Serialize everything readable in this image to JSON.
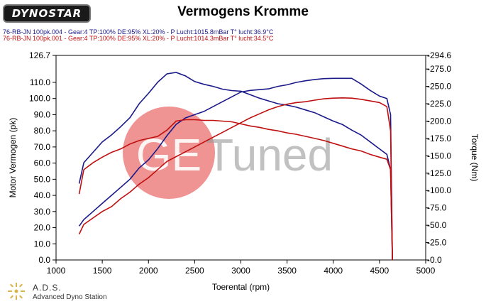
{
  "header": {
    "logo_text": "DYNOSTAR",
    "title": "Vermogens Kromme",
    "run1": "76-RB-JN 100pk.004 - Gear:4 TP:100% DE:95% XL:20%  - P Lucht:1015.8mBar T° lucht:36.9°C",
    "run2": "76-RB-JN 100pk.001 - Gear:4 TP:100% DE:95% XL:20%  - P Lucht:1014.3mBar T° lucht:34.5°C"
  },
  "watermark": {
    "text_ge": "GE",
    "text_tuned": "Tuned"
  },
  "footer": {
    "name": "A.D.S.",
    "subtitle": "Advanced Dyno Station"
  },
  "chart_data": {
    "type": "line",
    "xlabel": "Toerental (rpm)",
    "ylabel_left": "Motor Vermogen (pk)",
    "ylabel_right": "Torque (Nm)",
    "xlim": [
      1000,
      5000
    ],
    "ylim_left": [
      0,
      126.7
    ],
    "ylim_right": [
      0,
      294.6
    ],
    "x_ticks": [
      "1000",
      "1500",
      "2000",
      "2500",
      "3000",
      "3500",
      "4000",
      "4500",
      "5000"
    ],
    "y_ticks_left": [
      "0.0",
      "10.0",
      "20.0",
      "30.0",
      "40.0",
      "50.0",
      "60.0",
      "70.0",
      "80.0",
      "90.0",
      "100.0",
      "110.0",
      "126.7"
    ],
    "y_ticks_right": [
      "0.0",
      "25.0",
      "50.0",
      "75.0",
      "100.0",
      "125.0",
      "150.0",
      "175.0",
      "200.0",
      "225.0",
      "250.0",
      "275.0",
      "294.6"
    ],
    "grid": false,
    "colors": {
      "run1": "#1a1a8a",
      "run2": "#c01010"
    },
    "series": [
      {
        "run": "run1",
        "axis": "left",
        "x": [
          1250,
          1300,
          1400,
          1500,
          1600,
          1700,
          1800,
          1900,
          2000,
          2100,
          2200,
          2300,
          2400,
          2500,
          2600,
          2700,
          2800,
          2900,
          3000,
          3100,
          3200,
          3300,
          3400,
          3500,
          3600,
          3700,
          3800,
          3900,
          4000,
          4100,
          4200,
          4300,
          4400,
          4500,
          4580,
          4620,
          4640
        ],
        "y": [
          21,
          25,
          30,
          35,
          40,
          45,
          50,
          57,
          62,
          69,
          77,
          84,
          88,
          90,
          92,
          95,
          98,
          101,
          104,
          105,
          105.5,
          106,
          107.5,
          108.5,
          110,
          111,
          111.8,
          112.3,
          112.5,
          112.5,
          112.5,
          109,
          105,
          101.5,
          100,
          90,
          0
        ]
      },
      {
        "run": "run1",
        "axis": "right",
        "x": [
          1250,
          1300,
          1400,
          1500,
          1600,
          1700,
          1800,
          1900,
          2000,
          2100,
          2200,
          2300,
          2400,
          2500,
          2600,
          2700,
          2800,
          2900,
          3000,
          3100,
          3200,
          3300,
          3400,
          3500,
          3600,
          3700,
          3800,
          3900,
          4000,
          4100,
          4200,
          4300,
          4400,
          4500,
          4580,
          4620,
          4640
        ],
        "y": [
          110,
          140,
          155,
          170,
          180,
          192,
          205,
          225,
          240,
          256,
          268,
          270,
          265,
          257,
          253,
          250,
          246,
          244,
          243,
          238,
          233,
          229,
          225,
          223,
          220,
          216,
          212,
          206,
          200,
          195,
          187,
          180,
          170,
          160,
          152,
          130,
          0
        ]
      },
      {
        "run": "run2",
        "axis": "left",
        "x": [
          1250,
          1300,
          1400,
          1500,
          1600,
          1700,
          1800,
          1900,
          2000,
          2100,
          2200,
          2300,
          2400,
          2500,
          2600,
          2700,
          2800,
          2900,
          3000,
          3100,
          3200,
          3300,
          3400,
          3500,
          3600,
          3700,
          3800,
          3900,
          4000,
          4100,
          4200,
          4300,
          4400,
          4500,
          4580,
          4620,
          4640
        ],
        "y": [
          16,
          22,
          26,
          30,
          33,
          38,
          42,
          47,
          51,
          56,
          61,
          64,
          67,
          70,
          73,
          76,
          79,
          82,
          85,
          88,
          90.5,
          93,
          95,
          96.5,
          97.5,
          98,
          99,
          99.8,
          100.2,
          100.4,
          100.2,
          99.5,
          98.5,
          97.5,
          95,
          80,
          0
        ]
      },
      {
        "run": "run2",
        "axis": "right",
        "x": [
          1250,
          1300,
          1400,
          1500,
          1600,
          1700,
          1800,
          1900,
          2000,
          2100,
          2200,
          2300,
          2400,
          2500,
          2600,
          2700,
          2800,
          2900,
          3000,
          3100,
          3200,
          3300,
          3400,
          3500,
          3600,
          3700,
          3800,
          3900,
          4000,
          4100,
          4200,
          4300,
          4400,
          4500,
          4580,
          4620,
          4640
        ],
        "y": [
          95,
          130,
          140,
          148,
          155,
          160,
          167,
          172,
          175,
          178,
          187,
          200,
          202,
          202,
          201,
          201,
          200,
          199,
          196,
          193,
          191,
          188,
          186,
          183,
          181,
          178,
          175,
          172,
          168,
          164,
          160,
          157,
          152,
          148,
          145,
          130,
          0
        ]
      }
    ]
  }
}
